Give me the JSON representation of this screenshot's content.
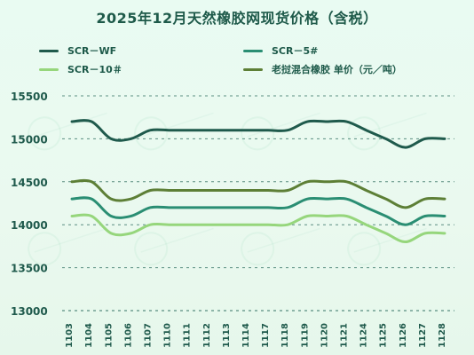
{
  "chart_data": {
    "type": "line",
    "title": "2025年12月天然橡胶网现货价格（含税）",
    "xlabel": "",
    "ylabel": "",
    "ylim": [
      13000,
      15500
    ],
    "yticks": [
      13000,
      13500,
      14000,
      14500,
      15000,
      15500
    ],
    "grid": "horizontal-dashed",
    "legend_position": "top",
    "categories": [
      "1103",
      "1104",
      "1105",
      "1106",
      "1107",
      "1110",
      "1111",
      "1112",
      "1113",
      "1114",
      "1117",
      "1118",
      "1119",
      "1120",
      "1121",
      "1124",
      "1125",
      "1126",
      "1127",
      "1128"
    ],
    "series": [
      {
        "name": "SCR－WF",
        "color": "#1f5a4c",
        "values": [
          15200,
          15200,
          15000,
          15000,
          15100,
          15100,
          15100,
          15100,
          15100,
          15100,
          15100,
          15100,
          15200,
          15200,
          15200,
          15100,
          15000,
          14900,
          15000,
          15000
        ]
      },
      {
        "name": "SCR－5#",
        "color": "#2a8e73",
        "values": [
          14300,
          14300,
          14100,
          14100,
          14200,
          14200,
          14200,
          14200,
          14200,
          14200,
          14200,
          14200,
          14300,
          14300,
          14300,
          14200,
          14100,
          14000,
          14100,
          14100
        ]
      },
      {
        "name": "SCR－10＃",
        "color": "#96d67c",
        "values": [
          14100,
          14100,
          13900,
          13900,
          14000,
          14000,
          14000,
          14000,
          14000,
          14000,
          14000,
          14000,
          14100,
          14100,
          14100,
          14000,
          13900,
          13800,
          13900,
          13900
        ]
      },
      {
        "name": "老挝混合橡胶 单价（元／吨）",
        "color": "#5d7f36",
        "values": [
          14500,
          14500,
          14300,
          14300,
          14400,
          14400,
          14400,
          14400,
          14400,
          14400,
          14400,
          14400,
          14500,
          14500,
          14500,
          14400,
          14300,
          14200,
          14300,
          14300
        ]
      }
    ]
  }
}
